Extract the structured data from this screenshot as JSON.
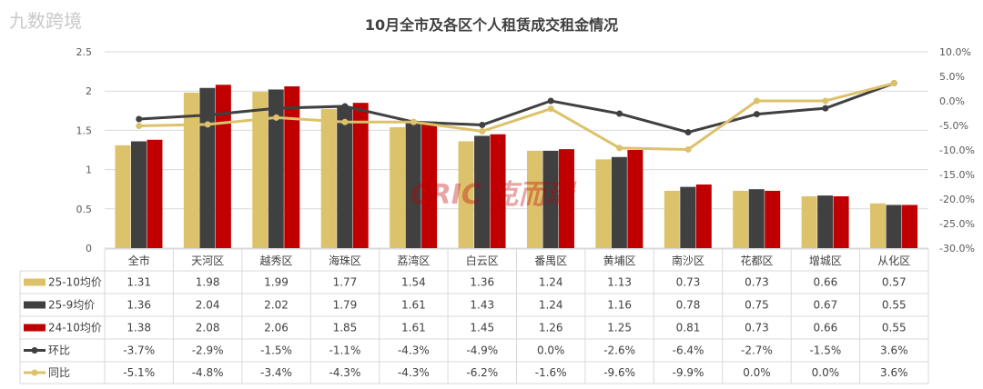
{
  "chart_data": {
    "type": "bar",
    "title": "10月全市及各区个人租赁成交租金情况",
    "categories": [
      "全市",
      "天河区",
      "越秀区",
      "海珠区",
      "荔湾区",
      "白云区",
      "番禺区",
      "黄埔区",
      "南沙区",
      "花都区",
      "增城区",
      "从化区"
    ],
    "series": [
      {
        "name": "25-10均价",
        "kind": "bar",
        "axis": "left",
        "color": "#dcc26a",
        "values": [
          1.31,
          1.98,
          1.99,
          1.77,
          1.54,
          1.36,
          1.24,
          1.13,
          0.73,
          0.73,
          0.66,
          0.57
        ],
        "labels": [
          "1.31",
          "1.98",
          "1.99",
          "1.77",
          "1.54",
          "1.36",
          "1.24",
          "1.13",
          "0.73",
          "0.73",
          "0.66",
          "0.57"
        ]
      },
      {
        "name": "25-9均价",
        "kind": "bar",
        "axis": "left",
        "color": "#404040",
        "values": [
          1.36,
          2.04,
          2.02,
          1.79,
          1.61,
          1.43,
          1.24,
          1.16,
          0.78,
          0.75,
          0.67,
          0.55
        ],
        "labels": [
          "1.36",
          "2.04",
          "2.02",
          "1.79",
          "1.61",
          "1.43",
          "1.24",
          "1.16",
          "0.78",
          "0.75",
          "0.67",
          "0.55"
        ]
      },
      {
        "name": "24-10均价",
        "kind": "bar",
        "axis": "left",
        "color": "#c00000",
        "values": [
          1.38,
          2.08,
          2.06,
          1.85,
          1.61,
          1.45,
          1.26,
          1.25,
          0.81,
          0.73,
          0.66,
          0.55
        ],
        "labels": [
          "1.38",
          "2.08",
          "2.06",
          "1.85",
          "1.61",
          "1.45",
          "1.26",
          "1.25",
          "0.81",
          "0.73",
          "0.66",
          "0.55"
        ]
      },
      {
        "name": "环比",
        "kind": "line",
        "axis": "right",
        "color": "#404040",
        "values": [
          -3.7,
          -2.9,
          -1.5,
          -1.1,
          -4.3,
          -4.9,
          0.0,
          -2.6,
          -6.4,
          -2.7,
          -1.5,
          3.6
        ],
        "labels": [
          "-3.7%",
          "-2.9%",
          "-1.5%",
          "-1.1%",
          "-4.3%",
          "-4.9%",
          "0.0%",
          "-2.6%",
          "-6.4%",
          "-2.7%",
          "-1.5%",
          "3.6%"
        ]
      },
      {
        "name": "同比",
        "kind": "line",
        "axis": "right",
        "color": "#dcc26a",
        "values": [
          -5.1,
          -4.8,
          -3.4,
          -4.3,
          -4.3,
          -6.2,
          -1.6,
          -9.6,
          -9.9,
          0.0,
          0.0,
          3.6
        ],
        "labels": [
          "-5.1%",
          "-4.8%",
          "-3.4%",
          "-4.3%",
          "-4.3%",
          "-6.2%",
          "-1.6%",
          "-9.6%",
          "-9.9%",
          "0.0%",
          "0.0%",
          "3.6%"
        ]
      }
    ],
    "y_left": {
      "range": [
        0,
        2.5
      ],
      "ticks": [
        "0",
        "0.5",
        "1",
        "1.5",
        "2",
        "2.5"
      ]
    },
    "y_right": {
      "range": [
        -30,
        10
      ],
      "ticks": [
        "-30.0%",
        "-25.0%",
        "-20.0%",
        "-15.0%",
        "-10.0%",
        "-5.0%",
        "0.0%",
        "5.0%",
        "10.0%"
      ]
    },
    "grid": true,
    "legend": "data-table-bottom"
  },
  "watermark": {
    "center": "CRIC 克而瑞",
    "corner": "九数跨境"
  }
}
